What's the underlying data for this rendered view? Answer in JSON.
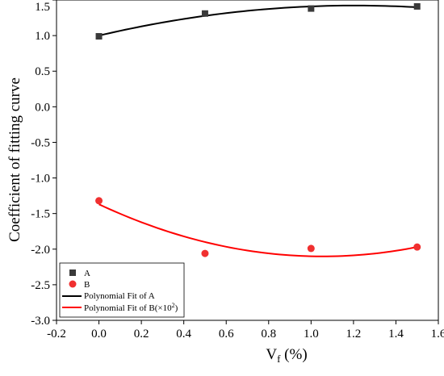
{
  "chart_data": {
    "type": "scatter",
    "xlabel_main": "V",
    "xlabel_sub": "f",
    "xlabel_rest": " (%)",
    "ylabel": "Coefficient of fitting curve",
    "xlim": [
      -0.2,
      1.6
    ],
    "ylim": [
      -3.0,
      1.5
    ],
    "xticks": [
      "-0.2",
      "0.0",
      "0.2",
      "0.4",
      "0.6",
      "0.8",
      "1.0",
      "1.2",
      "1.4",
      "1.6"
    ],
    "xtick_values": [
      -0.2,
      0.0,
      0.2,
      0.4,
      0.6,
      0.8,
      1.0,
      1.2,
      1.4,
      1.6
    ],
    "yticks": [
      "1.5",
      "1.0",
      "0.5",
      "0.0",
      "-0.5",
      "-1.0",
      "-1.5",
      "-2.0",
      "-2.5",
      "-3.0"
    ],
    "ytick_values": [
      1.5,
      1.0,
      0.5,
      0.0,
      -0.5,
      -1.0,
      -1.5,
      -2.0,
      -2.5,
      -3.0
    ],
    "grid": false,
    "legend_position": "bottom-left",
    "series": [
      {
        "name": "A",
        "marker": "square",
        "color": "#3a3a3a",
        "x": [
          0.0,
          0.5,
          1.0,
          1.5
        ],
        "y": [
          0.99,
          1.31,
          1.38,
          1.41
        ]
      },
      {
        "name": "B",
        "marker": "circle",
        "color": "#f03030",
        "x": [
          0.0,
          0.5,
          1.0,
          1.5
        ],
        "y": [
          -1.32,
          -2.06,
          -1.99,
          -1.97
        ]
      }
    ],
    "fits": [
      {
        "name": "Polynomial Fit of A",
        "color": "#000000",
        "x_range": [
          0.0,
          1.5
        ],
        "coefficients": [
          1.0,
          0.7,
          -0.29
        ]
      },
      {
        "name": "Polynomial Fit of B",
        "name_suffix": "(×10",
        "name_sup": "2",
        "name_end": ")",
        "color": "#ff0000",
        "x_range": [
          0.0,
          1.5
        ],
        "coefficients": [
          -1.37,
          -1.39,
          0.66
        ]
      }
    ]
  }
}
